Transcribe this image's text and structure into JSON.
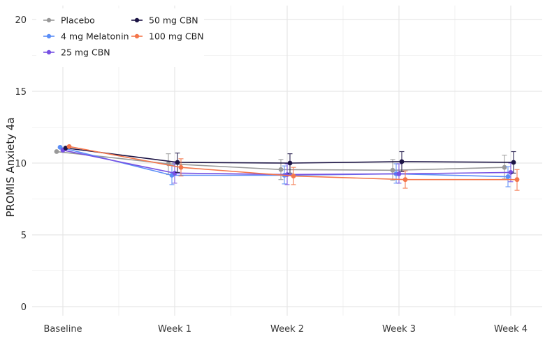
{
  "chart_data": {
    "type": "line",
    "title": "",
    "xlabel": "",
    "ylabel": "PROMIS Anxiety 4a",
    "categories": [
      "Baseline",
      "Week 1",
      "Week 2",
      "Week 3",
      "Week 4"
    ],
    "ylim": [
      0,
      20.5
    ],
    "yticks": [
      0,
      5,
      10,
      15,
      20
    ],
    "grid": true,
    "legend_position": "top-left",
    "error_bars": true,
    "series": [
      {
        "name": "Placebo",
        "color": "#999999",
        "values": [
          10.8,
          9.95,
          9.55,
          9.5,
          9.7
        ],
        "lower": [
          null,
          9.2,
          8.85,
          8.8,
          8.9
        ],
        "upper": [
          null,
          10.65,
          10.25,
          10.25,
          10.55
        ]
      },
      {
        "name": "4 mg Melatonin",
        "color": "#5b8ef7",
        "values": [
          11.1,
          9.15,
          9.15,
          9.25,
          9.05
        ],
        "lower": [
          null,
          8.5,
          8.55,
          8.6,
          8.35
        ],
        "upper": [
          null,
          9.85,
          9.8,
          9.95,
          9.75
        ]
      },
      {
        "name": "25 mg CBN",
        "color": "#7751e3",
        "values": [
          10.9,
          9.3,
          9.2,
          9.25,
          9.35
        ],
        "lower": [
          null,
          8.6,
          8.5,
          8.6,
          8.7
        ],
        "upper": [
          null,
          10.0,
          9.95,
          9.95,
          10.0
        ]
      },
      {
        "name": "50 mg CBN",
        "color": "#1c1445",
        "values": [
          11.05,
          10.05,
          10.0,
          10.1,
          10.05
        ],
        "lower": [
          null,
          9.35,
          9.3,
          9.4,
          9.3
        ],
        "upper": [
          null,
          10.7,
          10.65,
          10.8,
          10.8
        ]
      },
      {
        "name": "100 mg CBN",
        "color": "#f4764b",
        "values": [
          11.15,
          9.7,
          9.1,
          8.85,
          8.85
        ],
        "lower": [
          null,
          9.1,
          8.5,
          8.25,
          8.1
        ],
        "upper": [
          null,
          10.3,
          9.7,
          9.45,
          9.55
        ]
      }
    ]
  }
}
